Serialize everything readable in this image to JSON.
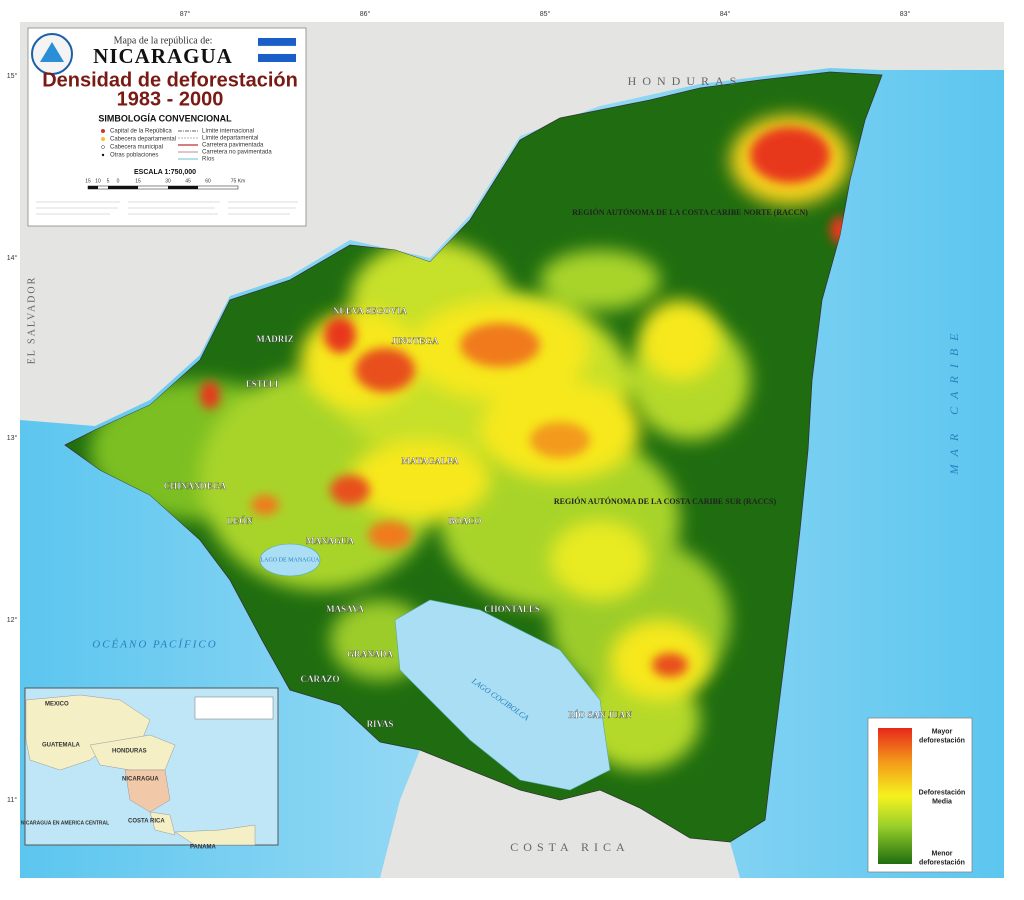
{
  "header": {
    "pretitle": "Mapa de la república de:",
    "country": "NICARAGUA",
    "title": "Densidad de deforestación",
    "years": "1983 - 2000"
  },
  "symbology": {
    "title": "SIMBOLOGÍA CONVENCIONAL",
    "items": [
      "Capital de la República",
      "Cabecera departamental",
      "Cabecera municipal",
      "Otras poblaciones",
      "Límite internacional",
      "Límite departamental",
      "Carretera pavimentada",
      "Carretera no pavimentada",
      "Ríos"
    ]
  },
  "scale": {
    "title": "ESCALA 1:750,000",
    "ticks": [
      "15",
      "10",
      "5",
      "0",
      "15",
      "30",
      "45",
      "60",
      "75 Km"
    ]
  },
  "grid": {
    "lon": [
      "87°",
      "86°",
      "85°",
      "84°",
      "83°"
    ],
    "lat": [
      "15°",
      "14°",
      "13°",
      "12°",
      "11°"
    ]
  },
  "labels": {
    "neighbors": [
      "HONDURAS",
      "COSTA RICA",
      "EL SALVADOR"
    ],
    "seas": [
      "OCÉANO PACÍFICO",
      "MAR CARIBE"
    ],
    "regions": [
      "REGIÓN AUTÓNOMA DE LA COSTA CARIBE NORTE (RACCN)",
      "REGIÓN AUTÓNOMA DE LA COSTA CARIBE SUR (RACCS)"
    ],
    "departments": [
      "NUEVA SEGOVIA",
      "MADRIZ",
      "ESTELÍ",
      "JINOTEGA",
      "MATAGALPA",
      "CHINANDEGA",
      "LEÓN",
      "MANAGUA",
      "BOACO",
      "CHONTALES",
      "MASAYA",
      "GRANADA",
      "CARAZO",
      "RIVAS",
      "RÍO SAN JUAN"
    ],
    "lakes": [
      "LAGO DE MANAGUA",
      "LAGO COCIBOLCA"
    ]
  },
  "legend": {
    "high": "Mayor deforestación",
    "mid": "Deforestación Media",
    "low": "Menor deforestación"
  },
  "inset": {
    "title": "NICARAGUA EN AMERICA CENTRAL",
    "countries": [
      "MEXICO",
      "GUATEMALA",
      "HONDURAS",
      "NICARAGUA",
      "COSTA RICA",
      "PANAMA"
    ]
  }
}
